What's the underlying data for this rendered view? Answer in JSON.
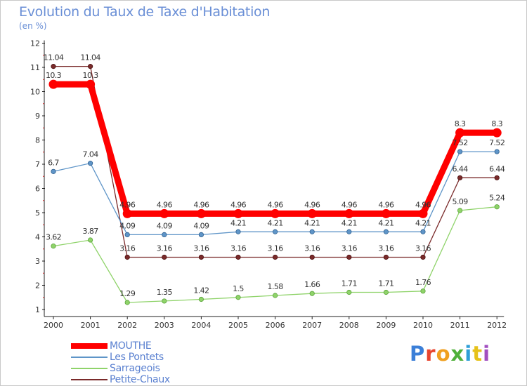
{
  "header": {
    "title": "Evolution du Taux de Taxe d'Habitation",
    "subtitle": "(en %)"
  },
  "brand": {
    "text": "Proxiti",
    "colors": [
      "#3b7fd8",
      "#e8442e",
      "#f0a020",
      "#4fb03a",
      "#2f9fd8",
      "#e6c21a",
      "#a24fc0"
    ]
  },
  "chart_data": {
    "type": "line",
    "title": "Evolution du Taux de Taxe d'Habitation",
    "subtitle": "(en %)",
    "xlabel": "",
    "ylabel": "",
    "categories": [
      "2000",
      "2001",
      "2002",
      "2003",
      "2004",
      "2005",
      "2006",
      "2007",
      "2008",
      "2009",
      "2010",
      "2011",
      "2012"
    ],
    "y_ticks": [
      "1",
      "2",
      "3",
      "4",
      "5",
      "6",
      "7",
      "8",
      "9",
      "10",
      "11",
      "12"
    ],
    "ylim": [
      1,
      12
    ],
    "grid": false,
    "legend_position": "bottom-left",
    "series": [
      {
        "name": "MOUTHE",
        "color": "#ff0000",
        "values": [
          10.3,
          10.3,
          4.96,
          4.96,
          4.96,
          4.96,
          4.96,
          4.96,
          4.96,
          4.96,
          4.96,
          8.3,
          8.3
        ],
        "labels": [
          "10.3",
          "10.3",
          "4.96",
          "4.96",
          "4.96",
          "4.96",
          "4.96",
          "4.96",
          "4.96",
          "4.96",
          "4.96",
          "8.3",
          "8.3"
        ]
      },
      {
        "name": "Les Pontets",
        "color": "#5f95c8",
        "values": [
          6.7,
          7.04,
          4.09,
          4.09,
          4.09,
          4.21,
          4.21,
          4.21,
          4.21,
          4.21,
          4.21,
          7.52,
          7.52
        ],
        "labels": [
          "6.7",
          "7.04",
          "4.09",
          "4.09",
          "4.09",
          "4.21",
          "4.21",
          "4.21",
          "4.21",
          "4.21",
          "4.21",
          "7.52",
          "7.52"
        ]
      },
      {
        "name": "Sarrageois",
        "color": "#8fd36a",
        "values": [
          3.62,
          3.87,
          1.29,
          1.35,
          1.42,
          1.5,
          1.58,
          1.66,
          1.71,
          1.71,
          1.76,
          5.09,
          5.24
        ],
        "labels": [
          "3.62",
          "3.87",
          "1.29",
          "1.35",
          "1.42",
          "1.5",
          "1.58",
          "1.66",
          "1.71",
          "1.71",
          "1.76",
          "5.09",
          "5.24"
        ]
      },
      {
        "name": "Petite-Chaux",
        "color": "#7a2a2a",
        "values": [
          11.04,
          11.04,
          3.16,
          3.16,
          3.16,
          3.16,
          3.16,
          3.16,
          3.16,
          3.16,
          3.16,
          6.44,
          6.44
        ],
        "labels": [
          "11.04",
          "11.04",
          "3.16",
          "3.16",
          "3.16",
          "3.16",
          "3.16",
          "3.16",
          "3.16",
          "3.16",
          "3.16",
          "6.44",
          "6.44"
        ]
      }
    ]
  }
}
